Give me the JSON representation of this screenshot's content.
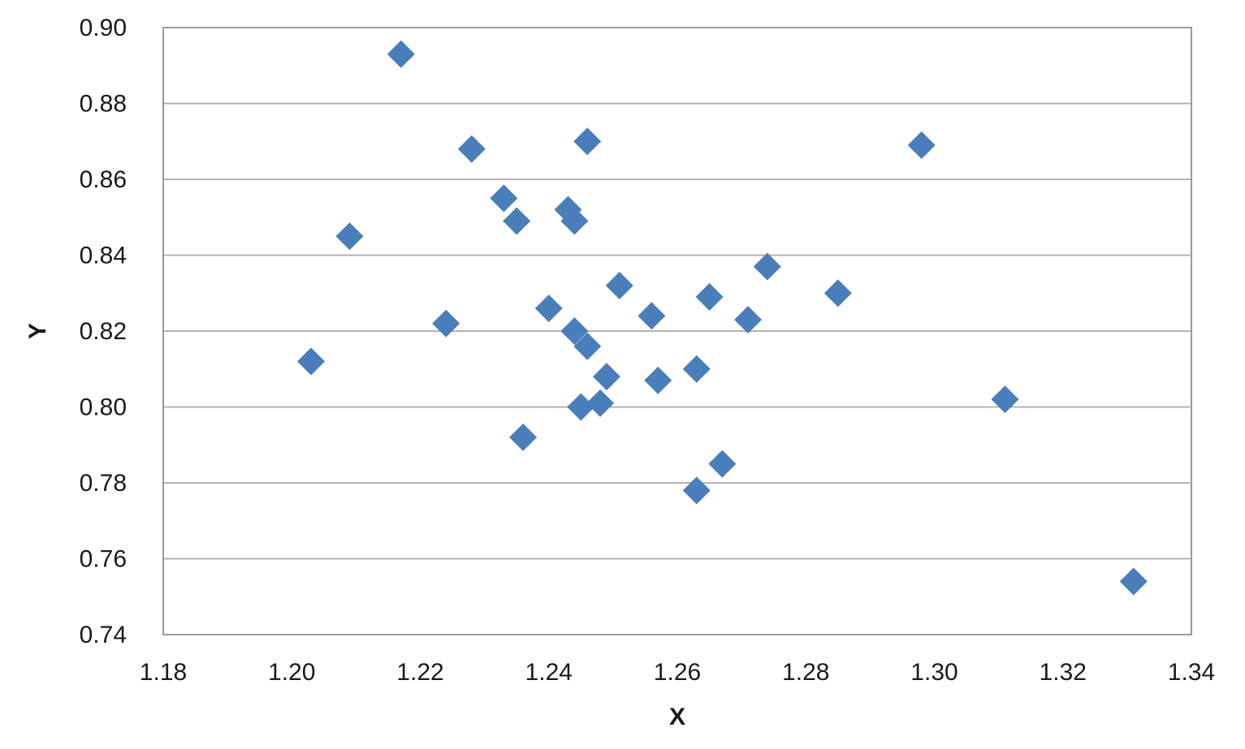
{
  "chart_data": {
    "type": "scatter",
    "title": "",
    "xlabel": "X",
    "ylabel": "Y",
    "xlim": [
      1.18,
      1.34
    ],
    "ylim": [
      0.74,
      0.9
    ],
    "x_ticks": [
      "1.18",
      "1.20",
      "1.22",
      "1.24",
      "1.26",
      "1.28",
      "1.30",
      "1.32",
      "1.34"
    ],
    "y_ticks": [
      "0.74",
      "0.76",
      "0.78",
      "0.80",
      "0.82",
      "0.84",
      "0.86",
      "0.88",
      "0.90"
    ],
    "grid": "horizontal",
    "legend": "none",
    "marker": "diamond",
    "marker_color": "#4a7ebb",
    "series": [
      {
        "points": [
          {
            "x": 1.203,
            "y": 0.812
          },
          {
            "x": 1.209,
            "y": 0.845
          },
          {
            "x": 1.217,
            "y": 0.893
          },
          {
            "x": 1.224,
            "y": 0.822
          },
          {
            "x": 1.228,
            "y": 0.868
          },
          {
            "x": 1.233,
            "y": 0.855
          },
          {
            "x": 1.235,
            "y": 0.849
          },
          {
            "x": 1.236,
            "y": 0.792
          },
          {
            "x": 1.24,
            "y": 0.826
          },
          {
            "x": 1.243,
            "y": 0.852
          },
          {
            "x": 1.244,
            "y": 0.849
          },
          {
            "x": 1.244,
            "y": 0.82
          },
          {
            "x": 1.245,
            "y": 0.8
          },
          {
            "x": 1.246,
            "y": 0.87
          },
          {
            "x": 1.246,
            "y": 0.816
          },
          {
            "x": 1.248,
            "y": 0.801
          },
          {
            "x": 1.249,
            "y": 0.808
          },
          {
            "x": 1.251,
            "y": 0.832
          },
          {
            "x": 1.256,
            "y": 0.824
          },
          {
            "x": 1.257,
            "y": 0.807
          },
          {
            "x": 1.263,
            "y": 0.81
          },
          {
            "x": 1.263,
            "y": 0.778
          },
          {
            "x": 1.265,
            "y": 0.829
          },
          {
            "x": 1.267,
            "y": 0.785
          },
          {
            "x": 1.271,
            "y": 0.823
          },
          {
            "x": 1.274,
            "y": 0.837
          },
          {
            "x": 1.285,
            "y": 0.83
          },
          {
            "x": 1.298,
            "y": 0.869
          },
          {
            "x": 1.311,
            "y": 0.802
          },
          {
            "x": 1.331,
            "y": 0.754
          }
        ]
      }
    ]
  }
}
